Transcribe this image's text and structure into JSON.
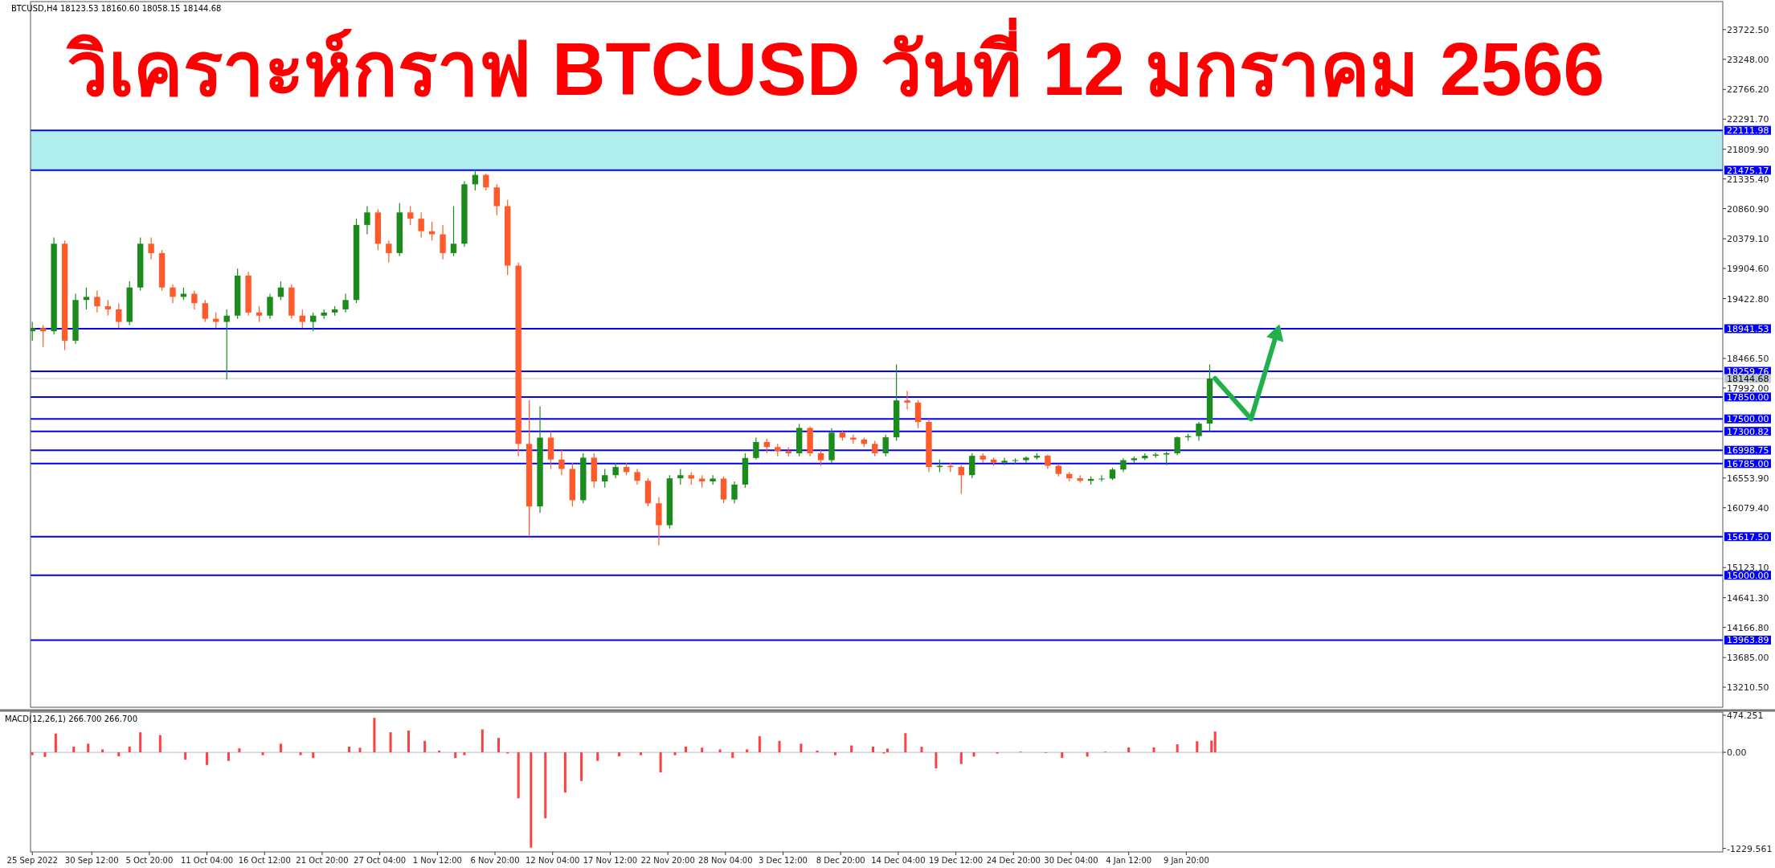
{
  "chart_data": [
    {
      "type": "candlestick",
      "title": "วิเคราะห์กราฟ BTCUSD วันที่ 12 มกราคม 2566",
      "subtitle": "BTCUSD,H4  18123.53 18160.60 18058.15 18144.68",
      "colors": [
        "#1b8c1b",
        "#ff5a2a",
        "#1b8c1b",
        "#ff5a2a",
        "#1b8c1b",
        "#1b8c1b",
        "#ff5a2a",
        "#ff5a2a",
        "#ff5a2a",
        "#1b8c1b",
        "#1b8c1b",
        "#ff5a2a",
        "#ff5a2a",
        "#ff5a2a",
        "#1b8c1b",
        "#ff5a2a",
        "#ff5a2a",
        "#ff5a2a",
        "#1b8c1b",
        "#1b8c1b",
        "#ff5a2a",
        "#ff5a2a",
        "#1b8c1b",
        "#1b8c1b",
        "#ff5a2a",
        "#ff5a2a",
        "#1b8c1b",
        "#1b8c1b",
        "#1b8c1b",
        "#1b8c1b",
        "#1b8c1b",
        "#1b8c1b",
        "#ff5a2a",
        "#ff5a2a",
        "#1b8c1b",
        "#ff5a2a",
        "#ff5a2a",
        "#ff5a2a",
        "#ff5a2a",
        "#1b8c1b",
        "#1b8c1b",
        "#1b8c1b",
        "#ff5a2a",
        "#ff5a2a",
        "#ff5a2a",
        "#ff5a2a",
        "#ff5a2a",
        "#1b8c1b",
        "#ff5a2a",
        "#ff5a2a",
        "#ff5a2a",
        "#1b8c1b",
        "#ff5a2a",
        "#1b8c1b",
        "#1b8c1b",
        "#ff5a2a",
        "#ff5a2a",
        "#ff5a2a",
        "#ff5a2a",
        "#1b8c1b",
        "#1b8c1b",
        "#ff5a2a",
        "#ff5a2a",
        "#1b8c1b",
        "#ff5a2a",
        "#1b8c1b",
        "#1b8c1b",
        "#1b8c1b",
        "#ff5a2a",
        "#ff5a2a",
        "#ff5a2a",
        "#1b8c1b",
        "#ff5a2a",
        "#ff5a2a",
        "#1b8c1b",
        "#ff5a2a",
        "#ff5a2a",
        "#ff5a2a",
        "#ff5a2a",
        "#1b8c1b",
        "#1b8c1b",
        "#ff5a2a",
        "#ff5a2a",
        "#ff5a2a",
        "#1b8c1b",
        "#ff5a2a",
        "#ff5a2a",
        "#1b8c1b",
        "#ff5a2a",
        "#ff5a2a",
        "#1b8c1b",
        "#1b8c1b",
        "#1b8c1b",
        "#1b8c1b",
        "#ff5a2a",
        "#ff5a2a",
        "#ff5a2a",
        "#ff5a2a",
        "#1b8c1b",
        "#1b8c1b",
        "#1b8c1b",
        "#1b8c1b",
        "#1b8c1b",
        "#1b8c1b",
        "#1b8c1b",
        "#1b8c1b",
        "#1b8c1b",
        "#1b8c1b",
        "#1b8c1b",
        "#1b8c1b"
      ],
      "x": [
        "2022-09-25",
        "2022-09-26",
        "2022-09-27",
        "2022-09-28",
        "2022-09-29",
        "2022-09-30",
        "2022-10-01",
        "2022-10-02",
        "2022-10-03",
        "2022-10-04",
        "2022-10-05",
        "2022-10-06",
        "2022-10-07",
        "2022-10-08",
        "2022-10-09",
        "2022-10-10",
        "2022-10-11",
        "2022-10-12",
        "2022-10-13",
        "2022-10-14",
        "2022-10-15",
        "2022-10-16",
        "2022-10-17",
        "2022-10-18",
        "2022-10-19",
        "2022-10-20",
        "2022-10-21",
        "2022-10-22",
        "2022-10-23",
        "2022-10-24",
        "2022-10-25",
        "2022-10-26",
        "2022-10-27",
        "2022-10-28",
        "2022-10-29",
        "2022-10-30",
        "2022-10-31",
        "2022-11-01",
        "2022-11-02",
        "2022-11-03",
        "2022-11-04",
        "2022-11-05",
        "2022-11-06",
        "2022-11-07",
        "2022-11-08",
        "2022-11-09",
        "2022-11-10",
        "2022-11-11",
        "2022-11-12",
        "2022-11-13",
        "2022-11-14",
        "2022-11-15",
        "2022-11-16",
        "2022-11-17",
        "2022-11-18",
        "2022-11-19",
        "2022-11-20",
        "2022-11-21",
        "2022-11-22",
        "2022-11-23",
        "2022-11-24",
        "2022-11-25",
        "2022-11-26",
        "2022-11-27",
        "2022-11-28",
        "2022-11-29",
        "2022-11-30",
        "2022-12-01",
        "2022-12-02",
        "2022-12-03",
        "2022-12-04",
        "2022-12-05",
        "2022-12-06",
        "2022-12-07",
        "2022-12-08",
        "2022-12-09",
        "2022-12-10",
        "2022-12-11",
        "2022-12-12",
        "2022-12-13",
        "2022-12-14",
        "2022-12-15",
        "2022-12-16",
        "2022-12-17",
        "2022-12-18",
        "2022-12-19",
        "2022-12-20",
        "2022-12-21",
        "2022-12-22",
        "2022-12-23",
        "2022-12-24",
        "2022-12-25",
        "2022-12-26",
        "2022-12-27",
        "2022-12-28",
        "2022-12-29",
        "2022-12-30",
        "2022-12-31",
        "2023-01-01",
        "2023-01-02",
        "2023-01-03",
        "2023-01-04",
        "2023-01-05",
        "2023-01-06",
        "2023-01-07",
        "2023-01-08",
        "2023-01-09",
        "2023-01-10",
        "2023-01-11",
        "2023-01-12"
      ],
      "ohlc": [
        [
          18900,
          19050,
          18750,
          18950
        ],
        [
          18950,
          19000,
          18650,
          18900
        ],
        [
          18900,
          20400,
          18850,
          20300
        ],
        [
          20300,
          20350,
          18600,
          18750
        ],
        [
          18750,
          19500,
          18700,
          19400
        ],
        [
          19400,
          19600,
          19250,
          19450
        ],
        [
          19450,
          19550,
          19200,
          19300
        ],
        [
          19300,
          19400,
          19150,
          19250
        ],
        [
          19250,
          19350,
          18950,
          19050
        ],
        [
          19050,
          19700,
          19000,
          19600
        ],
        [
          19600,
          20400,
          19550,
          20300
        ],
        [
          20300,
          20400,
          20050,
          20150
        ],
        [
          20150,
          20200,
          19550,
          19600
        ],
        [
          19600,
          19650,
          19350,
          19450
        ],
        [
          19450,
          19600,
          19400,
          19500
        ],
        [
          19500,
          19550,
          19250,
          19350
        ],
        [
          19350,
          19400,
          19050,
          19100
        ],
        [
          19100,
          19200,
          18950,
          19050
        ],
        [
          19050,
          19250,
          18130,
          19150
        ],
        [
          19150,
          19900,
          19100,
          19790
        ],
        [
          19790,
          19850,
          19150,
          19200
        ],
        [
          19200,
          19300,
          19050,
          19150
        ],
        [
          19150,
          19500,
          19100,
          19450
        ],
        [
          19450,
          19700,
          19400,
          19600
        ],
        [
          19600,
          19650,
          19100,
          19150
        ],
        [
          19150,
          19250,
          18950,
          19050
        ],
        [
          19050,
          19200,
          18900,
          19150
        ],
        [
          19150,
          19250,
          19100,
          19200
        ],
        [
          19200,
          19300,
          19150,
          19250
        ],
        [
          19250,
          19500,
          19200,
          19400
        ],
        [
          19400,
          20700,
          19350,
          20600
        ],
        [
          20600,
          20900,
          20450,
          20800
        ],
        [
          20800,
          20850,
          20200,
          20300
        ],
        [
          20300,
          20350,
          20000,
          20150
        ],
        [
          20150,
          20950,
          20100,
          20800
        ],
        [
          20800,
          20900,
          20600,
          20700
        ],
        [
          20700,
          20800,
          20400,
          20500
        ],
        [
          20500,
          20650,
          20350,
          20450
        ],
        [
          20450,
          20600,
          20050,
          20150
        ],
        [
          20150,
          20900,
          20100,
          20300
        ],
        [
          20300,
          21300,
          20250,
          21250
        ],
        [
          21250,
          21480,
          21150,
          21400
        ],
        [
          21400,
          21420,
          21150,
          21200
        ],
        [
          21200,
          21250,
          20750,
          20900
        ],
        [
          20900,
          21000,
          19800,
          19950
        ],
        [
          19950,
          20000,
          16900,
          17100
        ],
        [
          17100,
          17800,
          15620,
          16100
        ],
        [
          16100,
          17700,
          16000,
          17200
        ],
        [
          17200,
          17300,
          16700,
          16850
        ],
        [
          16850,
          17000,
          16600,
          16700
        ],
        [
          16700,
          16800,
          16100,
          16200
        ],
        [
          16200,
          16950,
          16150,
          16880
        ],
        [
          16880,
          16950,
          16400,
          16500
        ],
        [
          16500,
          16700,
          16400,
          16600
        ],
        [
          16600,
          16800,
          16550,
          16730
        ],
        [
          16730,
          16800,
          16600,
          16650
        ],
        [
          16650,
          16700,
          16450,
          16510
        ],
        [
          16510,
          16550,
          16100,
          16150
        ],
        [
          16150,
          16250,
          15480,
          15800
        ],
        [
          15800,
          16600,
          15750,
          16550
        ],
        [
          16550,
          16700,
          16450,
          16600
        ],
        [
          16600,
          16650,
          16450,
          16545
        ],
        [
          16545,
          16600,
          16400,
          16500
        ],
        [
          16500,
          16600,
          16450,
          16545
        ],
        [
          16545,
          16580,
          16150,
          16210
        ],
        [
          16210,
          16500,
          16150,
          16450
        ],
        [
          16450,
          16950,
          16400,
          16875
        ],
        [
          16875,
          17200,
          16850,
          17130
        ],
        [
          17130,
          17180,
          16950,
          17050
        ],
        [
          17050,
          17100,
          16900,
          16985
        ],
        [
          16985,
          17050,
          16900,
          16950
        ],
        [
          16950,
          17420,
          16900,
          17355
        ],
        [
          17355,
          17380,
          16900,
          16950
        ],
        [
          16950,
          17000,
          16750,
          16840
        ],
        [
          16840,
          17350,
          16800,
          17280
        ],
        [
          17280,
          17320,
          17150,
          17200
        ],
        [
          17200,
          17250,
          17100,
          17170
        ],
        [
          17170,
          17200,
          17050,
          17100
        ],
        [
          17100,
          17150,
          16900,
          16950
        ],
        [
          16950,
          17250,
          16900,
          17205
        ],
        [
          17205,
          18370,
          17150,
          17795
        ],
        [
          17795,
          17950,
          17650,
          17760
        ],
        [
          17760,
          17800,
          17350,
          17450
        ],
        [
          17450,
          17500,
          16650,
          16730
        ],
        [
          16730,
          16850,
          16650,
          16750
        ],
        [
          16750,
          16800,
          16650,
          16730
        ],
        [
          16730,
          16760,
          16300,
          16600
        ],
        [
          16600,
          16950,
          16550,
          16910
        ],
        [
          16910,
          16950,
          16800,
          16850
        ],
        [
          16850,
          16880,
          16750,
          16800
        ],
        [
          16800,
          16880,
          16760,
          16830
        ],
        [
          16830,
          16870,
          16780,
          16840
        ],
        [
          16840,
          16900,
          16800,
          16880
        ],
        [
          16880,
          16950,
          16850,
          16910
        ],
        [
          16910,
          16930,
          16700,
          16750
        ],
        [
          16750,
          16780,
          16580,
          16620
        ],
        [
          16620,
          16650,
          16500,
          16550
        ],
        [
          16550,
          16600,
          16480,
          16510
        ],
        [
          16510,
          16580,
          16450,
          16540
        ],
        [
          16540,
          16600,
          16500,
          16545
        ],
        [
          16545,
          16720,
          16520,
          16690
        ],
        [
          16690,
          16870,
          16650,
          16840
        ],
        [
          16840,
          16900,
          16800,
          16870
        ],
        [
          16870,
          16950,
          16840,
          16910
        ],
        [
          16910,
          16960,
          16880,
          16930
        ],
        [
          16930,
          16980,
          16760,
          16950
        ],
        [
          16950,
          17220,
          16920,
          17205
        ],
        [
          17205,
          17260,
          17150,
          17224
        ],
        [
          17224,
          17450,
          17150,
          17424
        ],
        [
          17424,
          18370,
          17300,
          18144.68
        ]
      ],
      "series": [
        {
          "type": "line",
          "color": "#22b04b",
          "x": [
            "2023-01-12T12:00",
            "2023-01-15T20:00",
            "2023-01-18T08:00"
          ],
          "values": [
            18144.68,
            17500,
            18941.53
          ]
        }
      ],
      "xlim": [
        "2022-09-24T20:00",
        "2023-02-28T12:00"
      ],
      "ylim": [
        12890,
        24170
      ],
      "yticks": [
        {
          "value": 23722.5,
          "label": "23722.50"
        },
        {
          "value": 23248,
          "label": "23248.00"
        },
        {
          "value": 22766.2,
          "label": "22766.20"
        },
        {
          "value": 22291.7,
          "label": "22291.70"
        },
        {
          "value": 21809.9,
          "label": "21809.90"
        },
        {
          "value": 21335.4,
          "label": "21335.40"
        },
        {
          "value": 20860.9,
          "label": "20860.90"
        },
        {
          "value": 20379.1,
          "label": "20379.10"
        },
        {
          "value": 19904.6,
          "label": "19904.60"
        },
        {
          "value": 19422.8,
          "label": "19422.80"
        },
        {
          "value": 18466.5,
          "label": "18466.50"
        },
        {
          "value": 17992,
          "label": "17992.00"
        },
        {
          "value": 16553.9,
          "label": "16553.90"
        },
        {
          "value": 16079.4,
          "label": "16079.40"
        },
        {
          "value": 15123.1,
          "label": "15123.10"
        },
        {
          "value": 14641.3,
          "label": "14641.30"
        },
        {
          "value": 14166.8,
          "label": "14166.80"
        },
        {
          "value": 13685,
          "label": "13685.00"
        },
        {
          "value": 13210.5,
          "label": "13210.50"
        }
      ],
      "tick_labels": "y",
      "bands": [
        {
          "axis": "y",
          "from": 21475.17,
          "to": 22111.98,
          "color": "#b0eeee"
        }
      ],
      "ref_lines": [
        {
          "axis": "y",
          "value": 22111.98,
          "label": "22111.98",
          "color": "#0000ff"
        },
        {
          "axis": "y",
          "value": 21475.17,
          "label": "21475.17",
          "color": "#0000ff"
        },
        {
          "axis": "y",
          "value": 18941.53,
          "label": "18941.53",
          "color": "#0000ff"
        },
        {
          "axis": "y",
          "value": 18259.76,
          "label": "18259.76",
          "color": "#0000ff"
        },
        {
          "axis": "y",
          "value": 18144.68,
          "label": "18144.68",
          "color": "#c0c8d0"
        },
        {
          "axis": "y",
          "value": 17850.0,
          "label": "17850.00",
          "color": "#0000ff"
        },
        {
          "axis": "y",
          "value": 17500.0,
          "label": "17500.00",
          "color": "#0000ff"
        },
        {
          "axis": "y",
          "value": 17300.82,
          "label": "17300.82",
          "color": "#0000ff"
        },
        {
          "axis": "y",
          "value": 16998.75,
          "label": "16998.75",
          "color": "#0000ff"
        },
        {
          "axis": "y",
          "value": 16785.0,
          "label": "16785.00",
          "color": "#0000ff"
        },
        {
          "axis": "y",
          "value": 15617.5,
          "label": "15617.50",
          "color": "#0000ff"
        },
        {
          "axis": "y",
          "value": 15000.0,
          "label": "15000.00",
          "color": "#0000ff"
        },
        {
          "axis": "y",
          "value": 13963.89,
          "label": "13963.89",
          "color": "#0000ff"
        }
      ]
    },
    {
      "type": "bar",
      "title": "MACD(12,26,1) 266.700 266.700",
      "color": "#ff4040",
      "x": [
        "2022-09-25T00:00",
        "2022-09-26T04:00",
        "2022-09-27T04:00",
        "2022-09-28T04:00",
        "2022-09-28T20:00",
        "2022-09-30T04:00",
        "2022-10-01T12:00",
        "2022-10-03T00:00",
        "2022-10-04T00:00",
        "2022-10-05T00:00",
        "2022-10-06T20:00",
        "2022-10-07T20:00",
        "2022-10-09T04:00",
        "2022-10-11T04:00",
        "2022-10-13T04:00",
        "2022-10-14T04:00",
        "2022-10-16T08:00",
        "2022-10-18T00:00",
        "2022-10-19T20:00",
        "2022-10-21T00:00",
        "2022-10-23T08:00",
        "2022-10-24T08:00",
        "2022-10-25T08:00",
        "2022-10-26T16:00",
        "2022-10-28T04:00",
        "2022-10-29T20:00",
        "2022-10-31T08:00",
        "2022-11-01T16:00",
        "2022-11-03T04:00",
        "2022-11-04T00:00",
        "2022-11-05T16:00",
        "2022-11-07T04:00",
        "2022-11-08T00:00",
        "2022-11-09T00:00",
        "2022-11-10T04:00",
        "2022-11-11T12:00",
        "2022-11-13T08:00",
        "2022-11-14T20:00",
        "2022-11-16T08:00",
        "2022-11-18T08:00",
        "2022-11-20T08:00",
        "2022-11-22T04:00",
        "2022-11-23T12:00",
        "2022-11-24T12:00",
        "2022-11-26T00:00",
        "2022-11-27T16:00",
        "2022-11-28T20:00",
        "2022-11-30T04:00",
        "2022-12-01T08:00",
        "2022-12-03T04:00",
        "2022-12-05T04:00",
        "2022-12-06T16:00",
        "2022-12-08T08:00",
        "2022-12-09T20:00",
        "2022-12-11T20:00",
        "2022-12-12T20:00",
        "2022-12-13T04:00",
        "2022-12-14T20:00",
        "2022-12-16T08:00",
        "2022-12-17T16:00",
        "2022-12-20T00:00",
        "2022-12-21T04:00",
        "2022-12-23T08:00",
        "2022-12-25T12:00",
        "2022-12-27T20:00",
        "2022-12-29T08:00",
        "2022-12-31T16:00",
        "2023-01-02T08:00",
        "2023-01-04T12:00",
        "2023-01-06T20:00",
        "2023-01-09T00:00",
        "2023-01-10T20:00",
        "2023-01-12T04:00",
        "2023-01-12T12:00"
      ],
      "values": [
        -37,
        -60,
        240,
        0,
        73,
        110,
        37,
        -51,
        73,
        257,
        220,
        0,
        -95,
        -162,
        -110,
        51,
        -37,
        110,
        -37,
        -73,
        0,
        73,
        59,
        441,
        257,
        279,
        147,
        22,
        -73,
        -37,
        294,
        184,
        -15,
        -588,
        -1220,
        -845,
        -515,
        -367,
        -110,
        -51,
        -37,
        -257,
        -37,
        73,
        59,
        37,
        -73,
        37,
        206,
        147,
        110,
        22,
        -37,
        88,
        73,
        -15,
        47,
        245,
        71,
        -205,
        -150,
        -55,
        -16,
        8,
        -8,
        -71,
        -55,
        8,
        63,
        63,
        103,
        142,
        150,
        266.7
      ],
      "xlim": [
        "2022-09-24T20:00",
        "2023-02-28T12:00"
      ],
      "xticks": [
        {
          "value": "2022-09-25T00:00",
          "label": "25 Sep 2022"
        },
        {
          "value": "2022-09-30T12:00",
          "label": "30 Sep 12:00"
        },
        {
          "value": "2022-10-05T20:00",
          "label": "5 Oct 20:00"
        },
        {
          "value": "2022-10-11T04:00",
          "label": "11 Oct 04:00"
        },
        {
          "value": "2022-10-16T12:00",
          "label": "16 Oct 12:00"
        },
        {
          "value": "2022-10-21T20:00",
          "label": "21 Oct 20:00"
        },
        {
          "value": "2022-10-27T04:00",
          "label": "27 Oct 04:00"
        },
        {
          "value": "2022-11-01T12:00",
          "label": "1 Nov 12:00"
        },
        {
          "value": "2022-11-06T20:00",
          "label": "6 Nov 20:00"
        },
        {
          "value": "2022-11-12T04:00",
          "label": "12 Nov 04:00"
        },
        {
          "value": "2022-11-17T12:00",
          "label": "17 Nov 12:00"
        },
        {
          "value": "2022-11-22T20:00",
          "label": "22 Nov 20:00"
        },
        {
          "value": "2022-11-28T04:00",
          "label": "28 Nov 04:00"
        },
        {
          "value": "2022-12-03T12:00",
          "label": "3 Dec 12:00"
        },
        {
          "value": "2022-12-08T20:00",
          "label": "8 Dec 20:00"
        },
        {
          "value": "2022-12-14T04:00",
          "label": "14 Dec 04:00"
        },
        {
          "value": "2022-12-19T12:00",
          "label": "19 Dec 12:00"
        },
        {
          "value": "2022-12-24T20:00",
          "label": "24 Dec 20:00"
        },
        {
          "value": "2022-12-30T04:00",
          "label": "30 Dec 04:00"
        },
        {
          "value": "2023-01-04T12:00",
          "label": "4 Jan 12:00"
        },
        {
          "value": "2023-01-09T20:00",
          "label": "9 Jan 20:00"
        }
      ],
      "ylim": [
        -1275,
        515
      ],
      "yticks": [
        474.251,
        {
          "value": 0,
          "label": "0.00"
        },
        {
          "value": -1229.561,
          "label": "-1229.561"
        }
      ],
      "ref_lines": [
        {
          "axis": "y",
          "value": 0,
          "color": "#c8c8c8"
        }
      ]
    }
  ]
}
